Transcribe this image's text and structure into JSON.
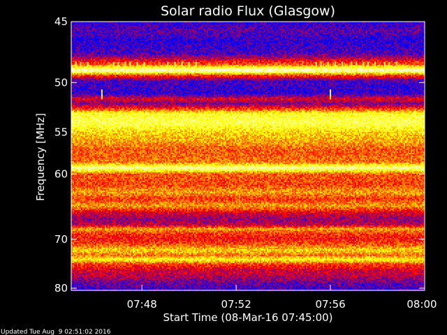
{
  "chart_data": {
    "type": "heatmap",
    "title": "Solar radio Flux (Glasgow)",
    "xlabel": "Start Time (08-Mar-16 07:45:00)",
    "ylabel": "Frequency [MHz]",
    "x_range_minutes_after_start": [
      0,
      15
    ],
    "x_ticks": [
      {
        "label": "07:48",
        "value": 3
      },
      {
        "label": "07:52",
        "value": 7
      },
      {
        "label": "07:56",
        "value": 11
      },
      {
        "label": "08:00",
        "value": 15
      }
    ],
    "y_range_mhz": [
      45,
      80.5
    ],
    "y_scale": "reciprocal",
    "y_ticks": [
      45,
      50,
      55,
      60,
      70,
      80
    ],
    "colormap": [
      "#0000ff",
      "#ff0000",
      "#ffff00",
      "#ffffff"
    ],
    "intensity_by_frequency": [
      {
        "mhz": 45.0,
        "level": 0.05
      },
      {
        "mhz": 45.7,
        "level": 0.12
      },
      {
        "mhz": 46.5,
        "level": 0.05
      },
      {
        "mhz": 47.5,
        "level": 0.1
      },
      {
        "mhz": 48.4,
        "level": 0.45
      },
      {
        "mhz": 48.9,
        "level": 0.97
      },
      {
        "mhz": 49.3,
        "level": 0.45
      },
      {
        "mhz": 49.8,
        "level": 0.1
      },
      {
        "mhz": 51.0,
        "level": 0.05
      },
      {
        "mhz": 51.5,
        "level": 0.3
      },
      {
        "mhz": 52.0,
        "level": 0.15
      },
      {
        "mhz": 52.5,
        "level": 0.4
      },
      {
        "mhz": 53.0,
        "level": 0.72
      },
      {
        "mhz": 54.0,
        "level": 0.78
      },
      {
        "mhz": 55.0,
        "level": 0.62
      },
      {
        "mhz": 56.0,
        "level": 0.55
      },
      {
        "mhz": 57.0,
        "level": 0.45
      },
      {
        "mhz": 58.5,
        "level": 0.48
      },
      {
        "mhz": 59.2,
        "level": 0.88
      },
      {
        "mhz": 60.0,
        "level": 0.45
      },
      {
        "mhz": 61.5,
        "level": 0.42
      },
      {
        "mhz": 62.5,
        "level": 0.55
      },
      {
        "mhz": 63.5,
        "level": 0.4
      },
      {
        "mhz": 64.5,
        "level": 0.55
      },
      {
        "mhz": 65.5,
        "level": 0.3
      },
      {
        "mhz": 66.5,
        "level": 0.18
      },
      {
        "mhz": 67.5,
        "level": 0.25
      },
      {
        "mhz": 68.2,
        "level": 0.55
      },
      {
        "mhz": 69.0,
        "level": 0.4
      },
      {
        "mhz": 70.0,
        "level": 0.35
      },
      {
        "mhz": 71.0,
        "level": 0.45
      },
      {
        "mhz": 72.0,
        "level": 0.62
      },
      {
        "mhz": 73.0,
        "level": 0.48
      },
      {
        "mhz": 73.8,
        "level": 0.7
      },
      {
        "mhz": 74.8,
        "level": 0.4
      },
      {
        "mhz": 76.0,
        "level": 0.28
      },
      {
        "mhz": 77.5,
        "level": 0.22
      },
      {
        "mhz": 79.0,
        "level": 0.12
      },
      {
        "mhz": 80.5,
        "level": 0.08
      }
    ],
    "bursts": [
      {
        "mhz": 48.6,
        "minutes": [
          0.2,
          0.4,
          0.7,
          1.8,
          2.0,
          2.3,
          2.5,
          2.8,
          3.1,
          4.1,
          4.4,
          4.7,
          5.0,
          5.3,
          10.4,
          10.6,
          10.9,
          11.2,
          11.5,
          11.9,
          12.1,
          12.4,
          12.6,
          12.9,
          13.3,
          13.5,
          13.8
        ]
      },
      {
        "mhz": 51.1,
        "minutes": [
          1.3,
          11.0
        ]
      }
    ]
  },
  "footer": {
    "updated": "Updated Tue Aug  9 02:51:02 2016"
  }
}
